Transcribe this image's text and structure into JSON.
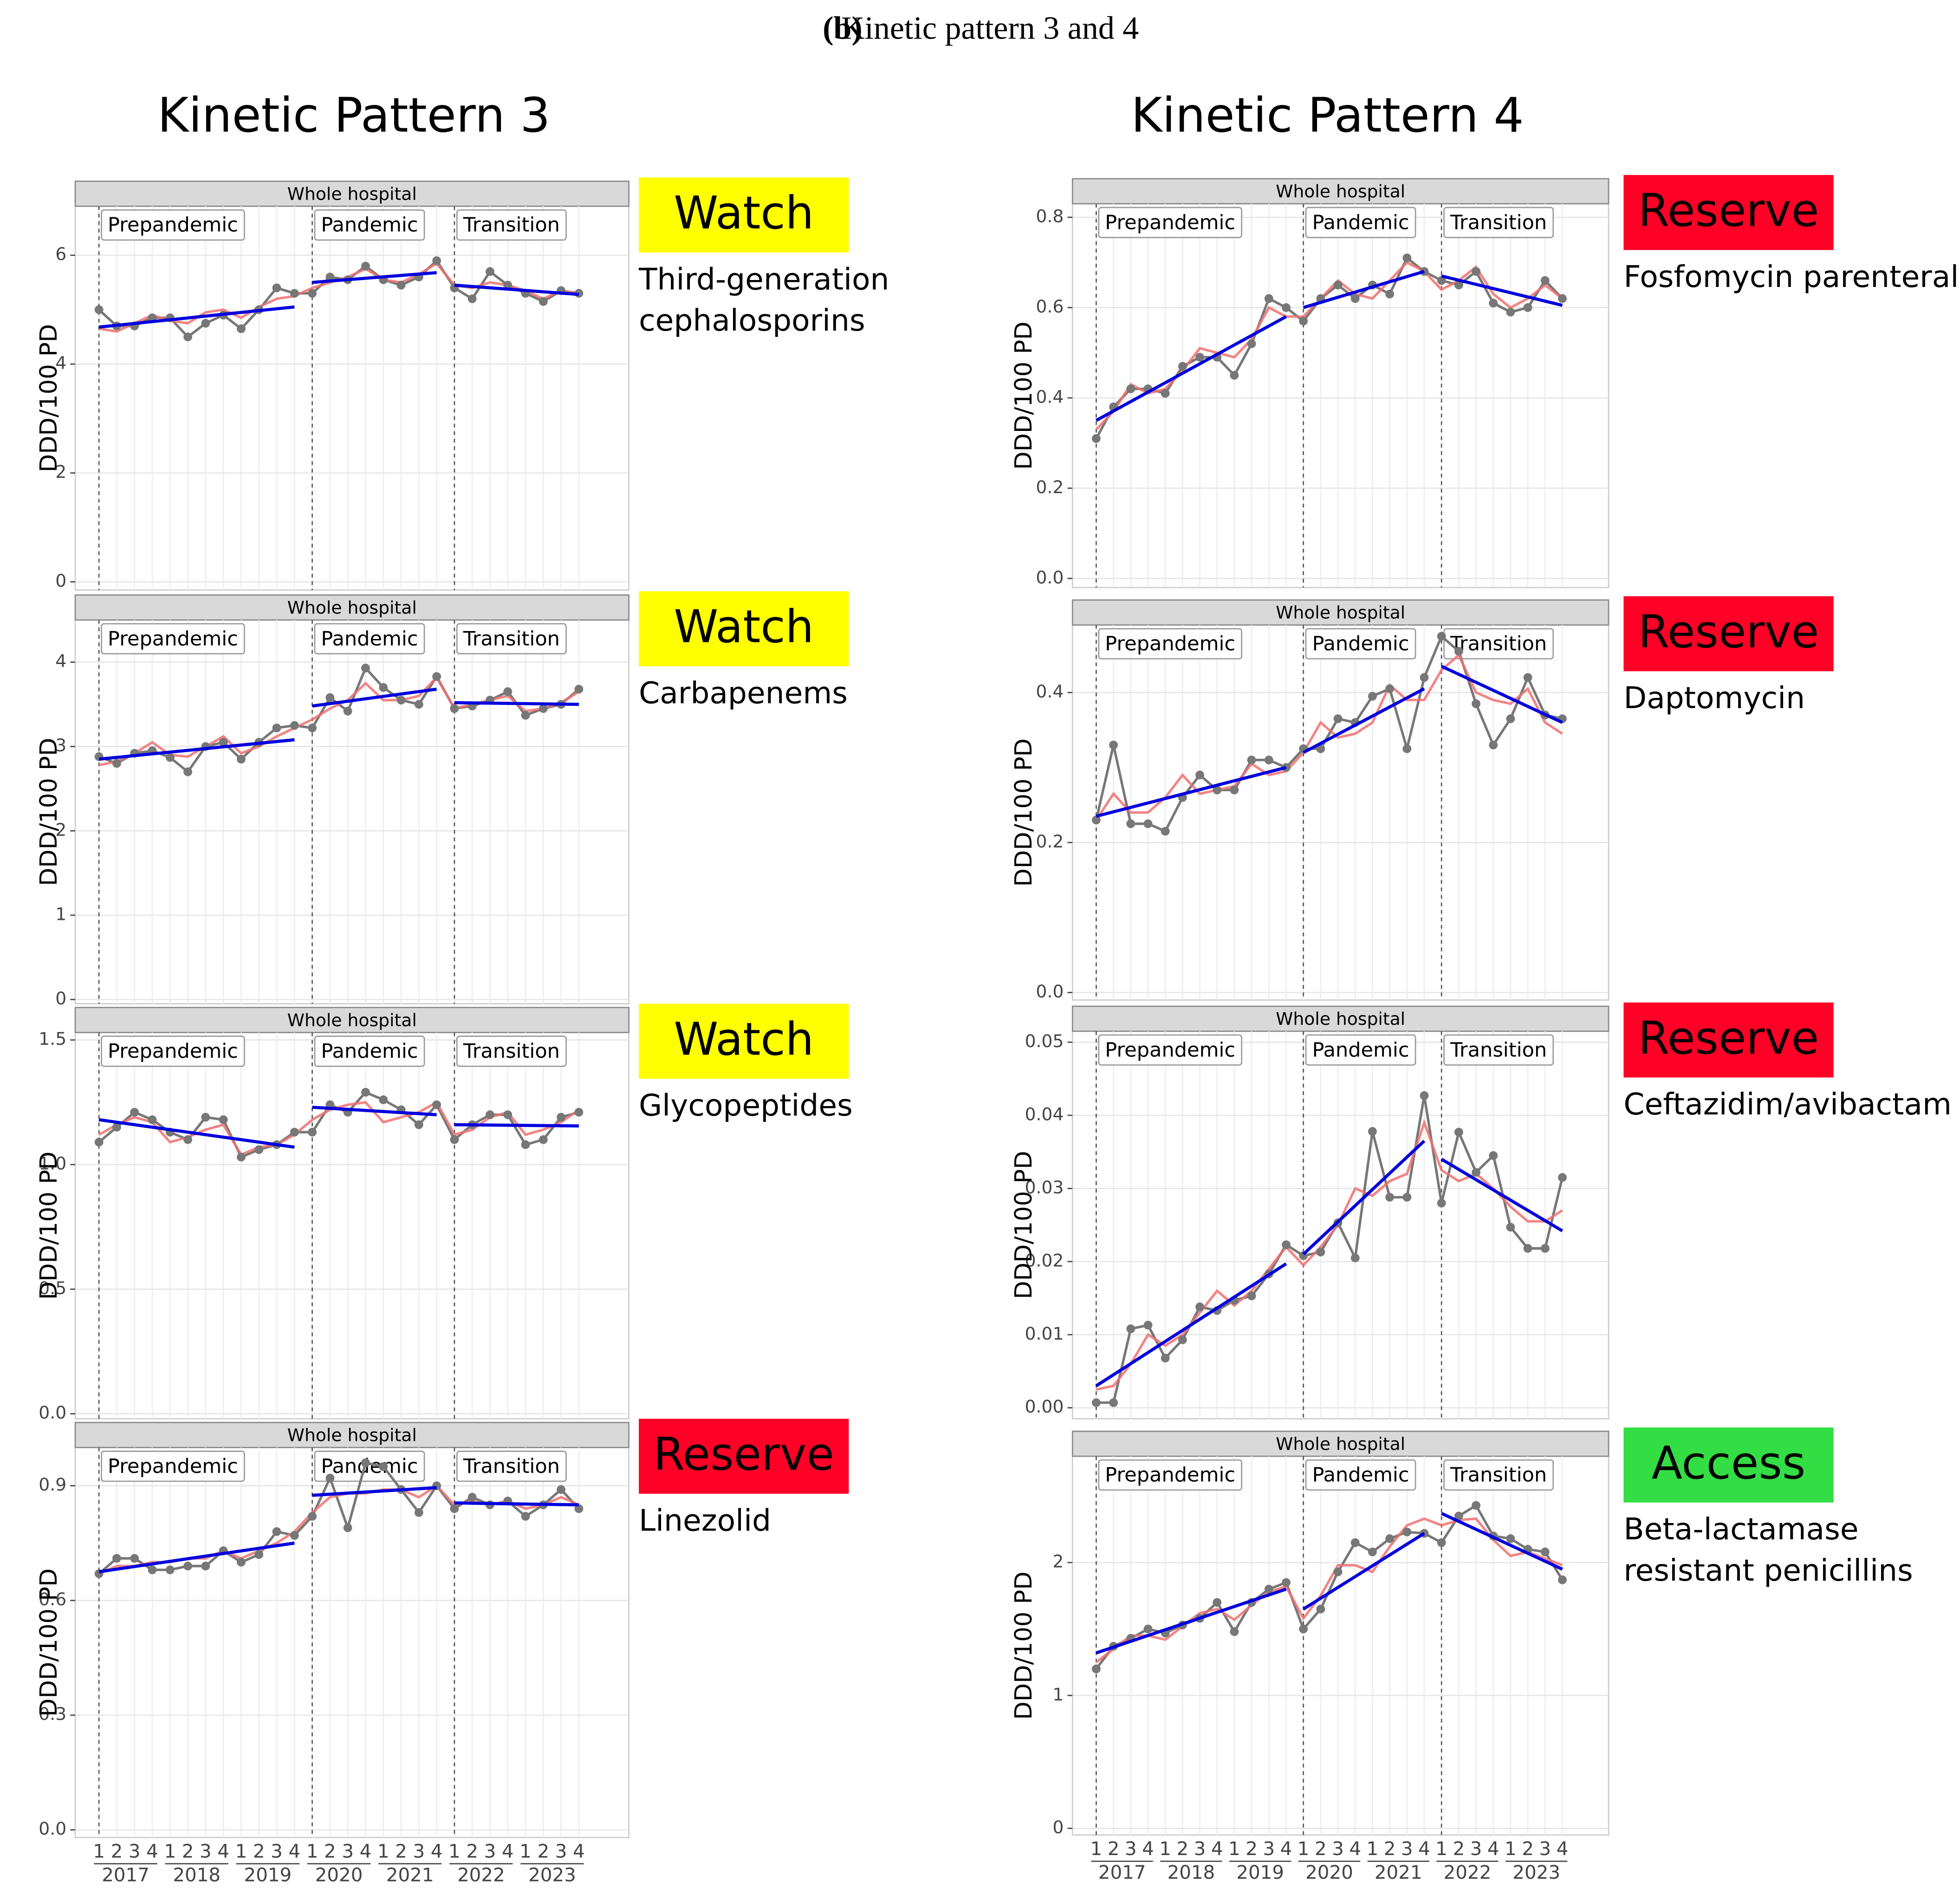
{
  "caption": {
    "label": "(b)",
    "text": "Kinetic pattern 3 and 4"
  },
  "columns": [
    "Kinetic Pattern 3",
    "Kinetic Pattern 4"
  ],
  "x": {
    "quarters": [
      "1",
      "2",
      "3",
      "4",
      "1",
      "2",
      "3",
      "4",
      "1",
      "2",
      "3",
      "4",
      "1",
      "2",
      "3",
      "4",
      "1",
      "2",
      "3",
      "4",
      "1",
      "2",
      "3",
      "4",
      "1",
      "2",
      "3",
      "4"
    ],
    "years": [
      "2017",
      "2018",
      "2019",
      "2020",
      "2021",
      "2022",
      "2023"
    ]
  },
  "chart_data": [
    {
      "type": "line",
      "title": "Whole hospital",
      "ylabel": "DDD/100 PD",
      "class": "Watch",
      "class_color": "#ffff00",
      "drug": [
        "Third-generation",
        "cephalosporins"
      ],
      "periods": [
        {
          "name": "Prepandemic",
          "trend": [
            4.68,
            5.05
          ]
        },
        {
          "name": "Pandemic",
          "trend": [
            5.5,
            5.68
          ]
        },
        {
          "name": "Transition",
          "trend": [
            5.45,
            5.28
          ]
        }
      ],
      "trend_color": "#0000dd",
      "ylim": [
        -0.15,
        6.9
      ],
      "yticks": [
        0,
        2,
        4,
        6
      ],
      "series": [
        {
          "color": "#777777",
          "values": [
            5.0,
            4.7,
            4.7,
            4.85,
            4.85,
            4.5,
            4.75,
            4.9,
            4.65,
            5.0,
            5.4,
            5.3,
            5.3,
            5.6,
            5.55,
            5.8,
            5.55,
            5.45,
            5.6,
            5.9,
            5.4,
            5.2,
            5.7,
            5.45,
            5.3,
            5.15,
            5.35,
            5.3
          ]
        },
        {
          "color": "#f07070",
          "values": [
            4.65,
            4.6,
            4.75,
            4.9,
            4.8,
            4.75,
            4.95,
            5.0,
            4.85,
            5.05,
            5.2,
            5.25,
            5.4,
            5.5,
            5.6,
            5.75,
            5.55,
            5.5,
            5.65,
            5.85,
            5.45,
            5.4,
            5.5,
            5.45,
            5.35,
            5.2,
            5.35,
            5.3
          ]
        }
      ]
    },
    {
      "type": "line",
      "title": "Whole hospital",
      "ylabel": "DDD/100 PD",
      "class": "Watch",
      "class_color": "#ffff00",
      "drug": [
        "Carbapenems"
      ],
      "periods": [
        {
          "name": "Prepandemic",
          "trend": [
            2.85,
            3.08
          ]
        },
        {
          "name": "Pandemic",
          "trend": [
            3.48,
            3.68
          ]
        },
        {
          "name": "Transition",
          "trend": [
            3.52,
            3.5
          ]
        }
      ],
      "trend_color": "#0000dd",
      "ylim": [
        -0.05,
        4.5
      ],
      "yticks": [
        0,
        1,
        2,
        3,
        4
      ],
      "series": [
        {
          "color": "#777777",
          "values": [
            2.88,
            2.8,
            2.92,
            2.95,
            2.87,
            2.7,
            3.0,
            3.05,
            2.85,
            3.05,
            3.22,
            3.25,
            3.22,
            3.58,
            3.42,
            3.93,
            3.7,
            3.55,
            3.5,
            3.83,
            3.45,
            3.48,
            3.55,
            3.65,
            3.37,
            3.45,
            3.5,
            3.68
          ]
        },
        {
          "color": "#f07070",
          "values": [
            2.78,
            2.82,
            2.92,
            3.05,
            2.9,
            2.88,
            3.0,
            3.12,
            2.92,
            3.0,
            3.12,
            3.22,
            3.32,
            3.45,
            3.55,
            3.75,
            3.55,
            3.55,
            3.6,
            3.82,
            3.45,
            3.5,
            3.55,
            3.6,
            3.42,
            3.45,
            3.52,
            3.65
          ]
        }
      ]
    },
    {
      "type": "line",
      "title": "Whole hospital",
      "ylabel": "DDD/100 PD",
      "class": "Watch",
      "class_color": "#ffff00",
      "drug": [
        "Glycopeptides"
      ],
      "periods": [
        {
          "name": "Prepandemic",
          "trend": [
            1.18,
            1.07
          ]
        },
        {
          "name": "Pandemic",
          "trend": [
            1.23,
            1.2
          ]
        },
        {
          "name": "Transition",
          "trend": [
            1.16,
            1.155
          ]
        }
      ],
      "trend_color": "#0000dd",
      "ylim": [
        -0.02,
        1.53
      ],
      "yticks": [
        {
          "value": 0,
          "label": "0.0"
        },
        0.5,
        {
          "value": 1,
          "label": "1.0"
        },
        1.5
      ],
      "series": [
        {
          "color": "#777777",
          "values": [
            1.09,
            1.15,
            1.21,
            1.18,
            1.13,
            1.1,
            1.19,
            1.18,
            1.03,
            1.06,
            1.08,
            1.13,
            1.13,
            1.24,
            1.21,
            1.29,
            1.26,
            1.22,
            1.16,
            1.24,
            1.1,
            1.16,
            1.2,
            1.2,
            1.08,
            1.1,
            1.19,
            1.21
          ]
        },
        {
          "color": "#f07070",
          "values": [
            1.12,
            1.16,
            1.19,
            1.17,
            1.09,
            1.11,
            1.14,
            1.16,
            1.04,
            1.07,
            1.08,
            1.12,
            1.18,
            1.22,
            1.24,
            1.25,
            1.17,
            1.19,
            1.21,
            1.25,
            1.12,
            1.14,
            1.19,
            1.21,
            1.12,
            1.14,
            1.17,
            1.22
          ]
        }
      ]
    },
    {
      "type": "line",
      "title": "Whole hospital",
      "ylabel": "DDD/100 PD",
      "class": "Reserve",
      "class_color": "#ff0026",
      "drug": [
        "Linezolid"
      ],
      "periods": [
        {
          "name": "Prepandemic",
          "trend": [
            0.675,
            0.75
          ]
        },
        {
          "name": "Pandemic",
          "trend": [
            0.875,
            0.895
          ]
        },
        {
          "name": "Transition",
          "trend": [
            0.855,
            0.85
          ]
        }
      ],
      "trend_color": "#0000dd",
      "ylim": [
        -0.02,
        1.0
      ],
      "yticks": [
        {
          "value": 0,
          "label": "0.0"
        },
        0.3,
        0.6,
        0.9
      ],
      "series": [
        {
          "color": "#777777",
          "values": [
            0.67,
            0.71,
            0.71,
            0.68,
            0.68,
            0.69,
            0.69,
            0.73,
            0.7,
            0.72,
            0.78,
            0.77,
            0.82,
            0.92,
            0.79,
            0.96,
            0.95,
            0.89,
            0.83,
            0.9,
            0.84,
            0.87,
            0.85,
            0.86,
            0.82,
            0.85,
            0.89,
            0.84
          ]
        },
        {
          "color": "#f07070",
          "values": [
            0.67,
            0.69,
            0.69,
            0.7,
            0.7,
            0.71,
            0.71,
            0.73,
            0.71,
            0.73,
            0.75,
            0.78,
            0.83,
            0.87,
            0.88,
            0.88,
            0.89,
            0.89,
            0.87,
            0.9,
            0.85,
            0.86,
            0.85,
            0.86,
            0.84,
            0.85,
            0.87,
            0.85
          ]
        }
      ]
    },
    {
      "type": "line",
      "title": "Whole hospital",
      "ylabel": "DDD/100 PD",
      "class": "Reserve",
      "class_color": "#ff0026",
      "drug": [
        "Fosfomycin parenteral"
      ],
      "periods": [
        {
          "name": "Prepandemic",
          "trend": [
            0.35,
            0.58
          ]
        },
        {
          "name": "Pandemic",
          "trend": [
            0.6,
            0.68
          ]
        },
        {
          "name": "Transition",
          "trend": [
            0.67,
            0.605
          ]
        }
      ],
      "trend_color": "#0000dd",
      "ylim": [
        -0.02,
        0.83
      ],
      "yticks": [
        {
          "value": 0,
          "label": "0.0"
        },
        0.2,
        0.4,
        0.6,
        0.8
      ],
      "series": [
        {
          "color": "#777777",
          "values": [
            0.31,
            0.38,
            0.42,
            0.42,
            0.41,
            0.47,
            0.49,
            0.49,
            0.45,
            0.52,
            0.62,
            0.6,
            0.57,
            0.62,
            0.65,
            0.62,
            0.65,
            0.63,
            0.71,
            0.68,
            0.66,
            0.65,
            0.68,
            0.61,
            0.59,
            0.6,
            0.66,
            0.62
          ]
        },
        {
          "color": "#f07070",
          "values": [
            0.33,
            0.37,
            0.43,
            0.41,
            0.42,
            0.46,
            0.51,
            0.5,
            0.49,
            0.53,
            0.6,
            0.58,
            0.58,
            0.62,
            0.66,
            0.63,
            0.62,
            0.66,
            0.7,
            0.68,
            0.64,
            0.66,
            0.69,
            0.63,
            0.6,
            0.62,
            0.65,
            0.62
          ]
        }
      ]
    },
    {
      "type": "line",
      "title": "Whole hospital",
      "ylabel": "DDD/100 PD",
      "class": "Reserve",
      "class_color": "#ff0026",
      "drug": [
        "Daptomycin"
      ],
      "periods": [
        {
          "name": "Prepandemic",
          "trend": [
            0.235,
            0.3
          ]
        },
        {
          "name": "Pandemic",
          "trend": [
            0.32,
            0.405
          ]
        },
        {
          "name": "Transition",
          "trend": [
            0.435,
            0.36
          ]
        }
      ],
      "trend_color": "#0000dd",
      "ylim": [
        -0.01,
        0.49
      ],
      "yticks": [
        {
          "value": 0,
          "label": "0.0"
        },
        0.2,
        0.4
      ],
      "series": [
        {
          "color": "#777777",
          "values": [
            0.23,
            0.33,
            0.225,
            0.225,
            0.215,
            0.26,
            0.29,
            0.27,
            0.27,
            0.31,
            0.31,
            0.3,
            0.325,
            0.325,
            0.365,
            0.36,
            0.395,
            0.405,
            0.325,
            0.42,
            0.475,
            0.455,
            0.385,
            0.33,
            0.365,
            0.42,
            0.37,
            0.365
          ]
        },
        {
          "color": "#f07070",
          "values": [
            0.23,
            0.265,
            0.24,
            0.24,
            0.26,
            0.29,
            0.265,
            0.27,
            0.275,
            0.305,
            0.29,
            0.295,
            0.32,
            0.36,
            0.34,
            0.345,
            0.36,
            0.41,
            0.39,
            0.39,
            0.43,
            0.45,
            0.4,
            0.39,
            0.385,
            0.405,
            0.36,
            0.345
          ]
        }
      ]
    },
    {
      "type": "line",
      "title": "Whole hospital",
      "ylabel": "DDD/100 PD",
      "class": "Reserve",
      "class_color": "#ff0026",
      "drug": [
        "Ceftazidim/avibactam"
      ],
      "periods": [
        {
          "name": "Prepandemic",
          "trend": [
            0.003,
            0.0197
          ]
        },
        {
          "name": "Pandemic",
          "trend": [
            0.021,
            0.0365
          ]
        },
        {
          "name": "Transition",
          "trend": [
            0.034,
            0.0242
          ]
        }
      ],
      "trend_color": "#0000dd",
      "ylim": [
        -0.0015,
        0.0515
      ],
      "yticks": [
        {
          "value": 0,
          "label": "0.00"
        },
        0.01,
        0.02,
        0.03,
        0.04,
        0.05
      ],
      "series": [
        {
          "color": "#777777",
          "values": [
            0.0007,
            0.0007,
            0.0108,
            0.0113,
            0.0068,
            0.0093,
            0.0138,
            0.0133,
            0.0147,
            0.0153,
            0.0183,
            0.0223,
            0.0208,
            0.0213,
            0.0253,
            0.0205,
            0.0378,
            0.0288,
            0.0288,
            0.0427,
            0.028,
            0.0377,
            0.0322,
            0.0345,
            0.0247,
            0.0218,
            0.0218,
            0.0315
          ]
        },
        {
          "color": "#f07070",
          "values": [
            0.0025,
            0.003,
            0.006,
            0.01,
            0.0085,
            0.01,
            0.013,
            0.016,
            0.014,
            0.016,
            0.019,
            0.022,
            0.0195,
            0.022,
            0.025,
            0.03,
            0.029,
            0.031,
            0.032,
            0.039,
            0.0325,
            0.031,
            0.032,
            0.03,
            0.0275,
            0.0255,
            0.0255,
            0.027
          ]
        }
      ]
    },
    {
      "type": "line",
      "title": "Whole hospital",
      "ylabel": "DDD/100 PD",
      "class": "Access",
      "class_color": "#33dd44",
      "drug": [
        "Beta-lactamase",
        "resistant penicillins"
      ],
      "periods": [
        {
          "name": "Prepandemic",
          "trend": [
            1.32,
            1.8
          ]
        },
        {
          "name": "Pandemic",
          "trend": [
            1.65,
            2.22
          ]
        },
        {
          "name": "Transition",
          "trend": [
            2.37,
            1.95
          ]
        }
      ],
      "trend_color": "#0000dd",
      "ylim": [
        -0.05,
        2.8
      ],
      "yticks": [
        0,
        1,
        2
      ],
      "series": [
        {
          "color": "#777777",
          "values": [
            1.2,
            1.37,
            1.43,
            1.5,
            1.47,
            1.53,
            1.58,
            1.7,
            1.48,
            1.7,
            1.8,
            1.85,
            1.5,
            1.65,
            1.93,
            2.15,
            2.08,
            2.18,
            2.23,
            2.22,
            2.15,
            2.35,
            2.43,
            2.2,
            2.18,
            2.1,
            2.08,
            1.87
          ]
        },
        {
          "color": "#f07070",
          "values": [
            1.25,
            1.35,
            1.45,
            1.45,
            1.42,
            1.52,
            1.62,
            1.65,
            1.57,
            1.68,
            1.78,
            1.82,
            1.58,
            1.75,
            1.98,
            1.98,
            1.93,
            2.12,
            2.28,
            2.33,
            2.28,
            2.32,
            2.33,
            2.17,
            2.05,
            2.08,
            2.03,
            1.98
          ]
        }
      ]
    }
  ]
}
